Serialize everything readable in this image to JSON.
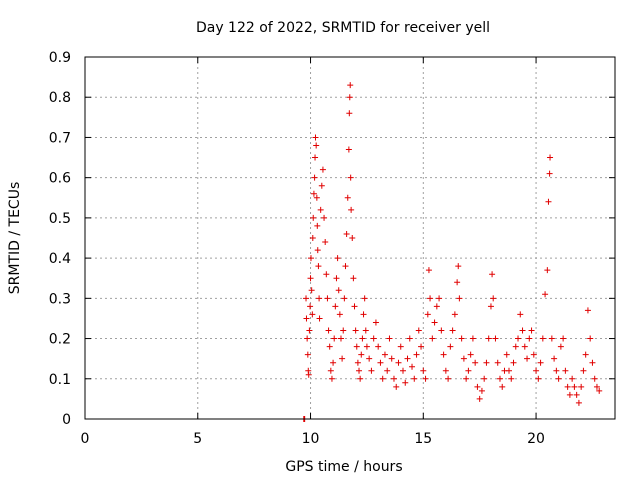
{
  "chart_data": {
    "type": "scatter",
    "title": "Day 122 of 2022, SRMTID for receiver yell",
    "xlabel": "GPS time / hours",
    "ylabel": "SRMTID / TECUs",
    "xlim": [
      0,
      23.5
    ],
    "ylim": [
      0,
      0.9
    ],
    "xticks": [
      0,
      5,
      10,
      15,
      20
    ],
    "xtick_labels": [
      "0",
      "5",
      "10",
      "15",
      "20"
    ],
    "yticks": [
      0,
      0.1,
      0.2,
      0.3,
      0.4,
      0.5,
      0.6,
      0.7,
      0.8,
      0.9
    ],
    "ytick_labels": [
      "0",
      "0.1",
      "0.2",
      "0.3",
      "0.4",
      "0.5",
      "0.6",
      "0.7",
      "0.8",
      "0.9"
    ],
    "grid": true,
    "marker": "+",
    "marker_color": "#e00000",
    "series": [
      {
        "name": "SRMTID",
        "points": [
          [
            9.7,
            0.0
          ],
          [
            9.72,
            0.0
          ],
          [
            9.74,
            0.0
          ],
          [
            9.8,
            0.3
          ],
          [
            9.82,
            0.25
          ],
          [
            9.85,
            0.2
          ],
          [
            9.88,
            0.16
          ],
          [
            9.9,
            0.12
          ],
          [
            9.92,
            0.11
          ],
          [
            9.95,
            0.22
          ],
          [
            9.98,
            0.28
          ],
          [
            10.0,
            0.35
          ],
          [
            10.02,
            0.4
          ],
          [
            10.05,
            0.32
          ],
          [
            10.08,
            0.26
          ],
          [
            10.1,
            0.45
          ],
          [
            10.12,
            0.5
          ],
          [
            10.15,
            0.56
          ],
          [
            10.18,
            0.6
          ],
          [
            10.2,
            0.65
          ],
          [
            10.22,
            0.7
          ],
          [
            10.25,
            0.68
          ],
          [
            10.28,
            0.55
          ],
          [
            10.3,
            0.48
          ],
          [
            10.32,
            0.42
          ],
          [
            10.35,
            0.38
          ],
          [
            10.38,
            0.3
          ],
          [
            10.4,
            0.25
          ],
          [
            10.45,
            0.52
          ],
          [
            10.5,
            0.58
          ],
          [
            10.55,
            0.62
          ],
          [
            10.6,
            0.5
          ],
          [
            10.65,
            0.44
          ],
          [
            10.7,
            0.36
          ],
          [
            10.75,
            0.3
          ],
          [
            10.8,
            0.22
          ],
          [
            10.85,
            0.18
          ],
          [
            10.9,
            0.12
          ],
          [
            10.95,
            0.1
          ],
          [
            11.0,
            0.14
          ],
          [
            11.05,
            0.2
          ],
          [
            11.1,
            0.28
          ],
          [
            11.15,
            0.35
          ],
          [
            11.2,
            0.4
          ],
          [
            11.25,
            0.32
          ],
          [
            11.3,
            0.26
          ],
          [
            11.35,
            0.2
          ],
          [
            11.4,
            0.15
          ],
          [
            11.45,
            0.22
          ],
          [
            11.5,
            0.3
          ],
          [
            11.55,
            0.38
          ],
          [
            11.6,
            0.46
          ],
          [
            11.65,
            0.55
          ],
          [
            11.7,
            0.67
          ],
          [
            11.72,
            0.76
          ],
          [
            11.74,
            0.8
          ],
          [
            11.76,
            0.83
          ],
          [
            11.78,
            0.6
          ],
          [
            11.8,
            0.52
          ],
          [
            11.85,
            0.45
          ],
          [
            11.9,
            0.35
          ],
          [
            11.95,
            0.28
          ],
          [
            12.0,
            0.22
          ],
          [
            12.05,
            0.18
          ],
          [
            12.1,
            0.14
          ],
          [
            12.15,
            0.12
          ],
          [
            12.2,
            0.1
          ],
          [
            12.25,
            0.16
          ],
          [
            12.3,
            0.2
          ],
          [
            12.35,
            0.26
          ],
          [
            12.4,
            0.3
          ],
          [
            12.45,
            0.22
          ],
          [
            12.5,
            0.18
          ],
          [
            12.6,
            0.15
          ],
          [
            12.7,
            0.12
          ],
          [
            12.8,
            0.2
          ],
          [
            12.9,
            0.24
          ],
          [
            13.0,
            0.18
          ],
          [
            13.1,
            0.14
          ],
          [
            13.2,
            0.1
          ],
          [
            13.3,
            0.16
          ],
          [
            13.4,
            0.12
          ],
          [
            13.5,
            0.2
          ],
          [
            13.6,
            0.15
          ],
          [
            13.7,
            0.1
          ],
          [
            13.8,
            0.08
          ],
          [
            13.9,
            0.14
          ],
          [
            14.0,
            0.18
          ],
          [
            14.1,
            0.12
          ],
          [
            14.2,
            0.09
          ],
          [
            14.3,
            0.15
          ],
          [
            14.4,
            0.2
          ],
          [
            14.5,
            0.13
          ],
          [
            14.6,
            0.1
          ],
          [
            14.7,
            0.16
          ],
          [
            14.8,
            0.22
          ],
          [
            14.9,
            0.18
          ],
          [
            15.0,
            0.12
          ],
          [
            15.1,
            0.1
          ],
          [
            15.2,
            0.26
          ],
          [
            15.25,
            0.37
          ],
          [
            15.3,
            0.3
          ],
          [
            15.4,
            0.2
          ],
          [
            15.5,
            0.24
          ],
          [
            15.6,
            0.28
          ],
          [
            15.7,
            0.3
          ],
          [
            15.8,
            0.22
          ],
          [
            15.9,
            0.16
          ],
          [
            16.0,
            0.12
          ],
          [
            16.1,
            0.1
          ],
          [
            16.2,
            0.18
          ],
          [
            16.3,
            0.22
          ],
          [
            16.4,
            0.26
          ],
          [
            16.5,
            0.34
          ],
          [
            16.55,
            0.38
          ],
          [
            16.6,
            0.3
          ],
          [
            16.7,
            0.2
          ],
          [
            16.8,
            0.15
          ],
          [
            16.9,
            0.1
          ],
          [
            17.0,
            0.12
          ],
          [
            17.1,
            0.16
          ],
          [
            17.2,
            0.2
          ],
          [
            17.3,
            0.14
          ],
          [
            17.4,
            0.08
          ],
          [
            17.5,
            0.05
          ],
          [
            17.6,
            0.07
          ],
          [
            17.7,
            0.1
          ],
          [
            17.8,
            0.14
          ],
          [
            17.9,
            0.2
          ],
          [
            18.0,
            0.28
          ],
          [
            18.05,
            0.36
          ],
          [
            18.1,
            0.3
          ],
          [
            18.2,
            0.2
          ],
          [
            18.3,
            0.14
          ],
          [
            18.4,
            0.1
          ],
          [
            18.5,
            0.08
          ],
          [
            18.6,
            0.12
          ],
          [
            18.7,
            0.16
          ],
          [
            18.8,
            0.12
          ],
          [
            18.9,
            0.1
          ],
          [
            19.0,
            0.14
          ],
          [
            19.1,
            0.18
          ],
          [
            19.2,
            0.2
          ],
          [
            19.3,
            0.26
          ],
          [
            19.4,
            0.22
          ],
          [
            19.5,
            0.18
          ],
          [
            19.6,
            0.15
          ],
          [
            19.7,
            0.2
          ],
          [
            19.8,
            0.22
          ],
          [
            19.9,
            0.16
          ],
          [
            20.0,
            0.12
          ],
          [
            20.1,
            0.1
          ],
          [
            20.2,
            0.14
          ],
          [
            20.3,
            0.2
          ],
          [
            20.4,
            0.31
          ],
          [
            20.5,
            0.37
          ],
          [
            20.55,
            0.54
          ],
          [
            20.6,
            0.61
          ],
          [
            20.62,
            0.65
          ],
          [
            20.7,
            0.2
          ],
          [
            20.8,
            0.15
          ],
          [
            20.9,
            0.12
          ],
          [
            21.0,
            0.1
          ],
          [
            21.1,
            0.18
          ],
          [
            21.2,
            0.2
          ],
          [
            21.3,
            0.12
          ],
          [
            21.4,
            0.08
          ],
          [
            21.5,
            0.06
          ],
          [
            21.6,
            0.1
          ],
          [
            21.7,
            0.08
          ],
          [
            21.8,
            0.06
          ],
          [
            21.9,
            0.04
          ],
          [
            22.0,
            0.08
          ],
          [
            22.1,
            0.12
          ],
          [
            22.2,
            0.16
          ],
          [
            22.3,
            0.27
          ],
          [
            22.4,
            0.2
          ],
          [
            22.5,
            0.14
          ],
          [
            22.6,
            0.1
          ],
          [
            22.7,
            0.08
          ],
          [
            22.8,
            0.07
          ]
        ]
      }
    ]
  }
}
